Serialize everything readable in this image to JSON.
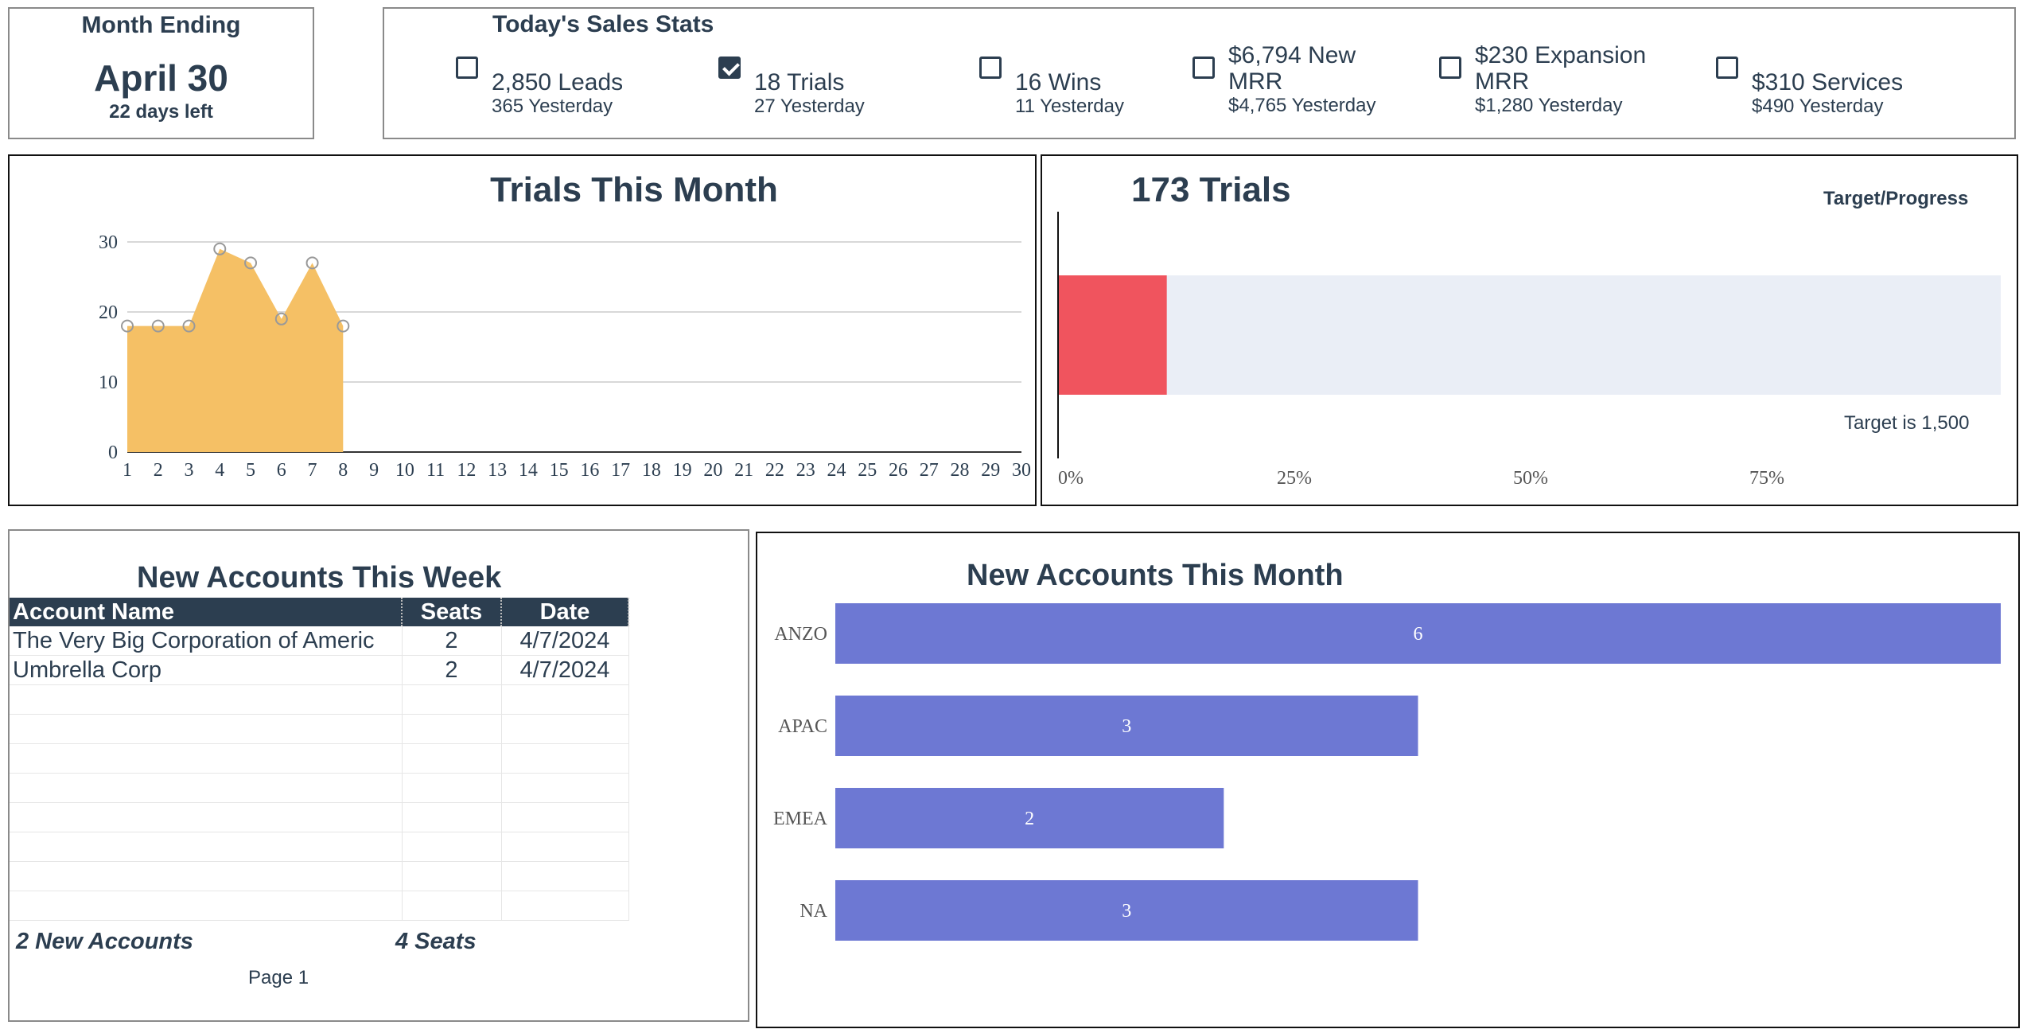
{
  "month": {
    "label": "Month Ending",
    "date": "April 30",
    "days_left": "22 days left"
  },
  "stats": {
    "title": "Today's Sales Stats",
    "items": [
      {
        "value": "2,850 Leads",
        "yesterday": "365 Yesterday",
        "checked": false
      },
      {
        "value": "18 Trials",
        "yesterday": "27 Yesterday",
        "checked": true
      },
      {
        "value": "16 Wins",
        "yesterday": "11 Yesterday",
        "checked": false
      },
      {
        "value": "$6,794 New MRR",
        "yesterday": "$4,765 Yesterday",
        "checked": false
      },
      {
        "value": "$230 Expansion MRR",
        "yesterday": "$1,280 Yesterday",
        "checked": false
      },
      {
        "value": "$310 Services",
        "yesterday": "$490 Yesterday",
        "checked": false
      }
    ]
  },
  "trials_chart": {
    "title": "Trials This Month"
  },
  "progress": {
    "title": "173 Trials",
    "target_progress_label": "Target/Progress",
    "target_label": "Target is 1,500",
    "ticks": [
      "0%",
      "25%",
      "50%",
      "75%"
    ]
  },
  "accounts_table": {
    "title": "New Accounts This Week",
    "headers": [
      "Account Name",
      "Seats",
      "Date"
    ],
    "rows": [
      [
        "The Very Big Corporation of Americ",
        "2",
        "4/7/2024"
      ],
      [
        "Umbrella Corp",
        "2",
        "4/7/2024"
      ]
    ],
    "footer_accounts": "2 New Accounts",
    "footer_seats": "4 Seats",
    "page": "Page 1"
  },
  "bar_chart": {
    "title": "New Accounts This Month"
  },
  "chart_data": [
    {
      "type": "area",
      "title": "Trials This Month",
      "x": [
        1,
        2,
        3,
        4,
        5,
        6,
        7,
        8
      ],
      "values": [
        18,
        18,
        18,
        29,
        27,
        19,
        27,
        18
      ],
      "x_ticks": [
        "1",
        "2",
        "3",
        "4",
        "5",
        "6",
        "7",
        "8",
        "9",
        "10",
        "11",
        "12",
        "13",
        "14",
        "15",
        "16",
        "17",
        "18",
        "19",
        "20",
        "21",
        "22",
        "23",
        "24",
        "25",
        "26",
        "27",
        "28",
        "29",
        "30"
      ],
      "y_ticks": [
        "0",
        "10",
        "20",
        "30"
      ],
      "xlim": [
        1,
        30
      ],
      "ylim": [
        0,
        30
      ],
      "grid": true,
      "color": "#f5c065"
    },
    {
      "type": "bar",
      "title": "173 Trials",
      "orientation": "horizontal",
      "values": [
        173
      ],
      "target": 1500,
      "ticks": [
        "0%",
        "25%",
        "50%",
        "75%"
      ],
      "color": "#f0545e",
      "track_color": "#eaeef6"
    },
    {
      "type": "bar",
      "title": "New Accounts This Month",
      "orientation": "horizontal",
      "categories": [
        "ANZO",
        "APAC",
        "EMEA",
        "NA"
      ],
      "values": [
        6,
        3,
        2,
        3
      ],
      "color": "#6d78d3"
    }
  ]
}
